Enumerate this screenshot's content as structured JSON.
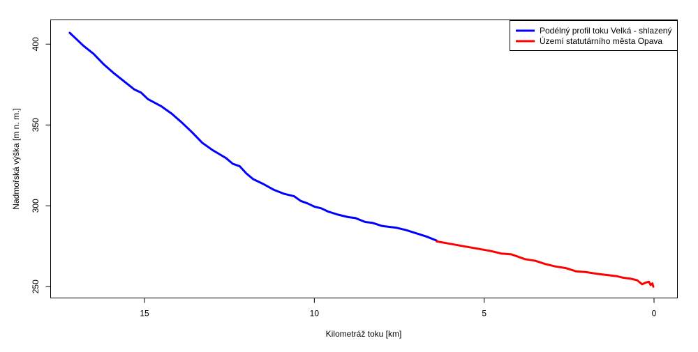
{
  "chart_data": {
    "type": "line",
    "title": "",
    "xlabel": "Kilometráž toku [km]",
    "ylabel": "Nadmořská výška [m n. m.]",
    "xlim": [
      0,
      18
    ],
    "x_reversed": true,
    "ylim": [
      243,
      415
    ],
    "x_ticks": [
      15,
      10,
      5,
      0
    ],
    "y_ticks": [
      250,
      300,
      350,
      400
    ],
    "legend": {
      "position": "top-right",
      "entries": [
        {
          "label": "Podélný profil toku Velká - shlazený",
          "color": "#0000ff"
        },
        {
          "label": "Území statutárního města Opava",
          "color": "#ff0000"
        }
      ]
    },
    "series": [
      {
        "name": "Podélný profil toku Velká - shlazený",
        "color": "#0000ff",
        "x": [
          17.2,
          17.0,
          16.8,
          16.5,
          16.2,
          15.9,
          15.6,
          15.3,
          15.1,
          14.9,
          14.5,
          14.2,
          13.9,
          13.6,
          13.3,
          13.0,
          12.8,
          12.6,
          12.4,
          12.2,
          12.0,
          11.8,
          11.5,
          11.2,
          10.9,
          10.6,
          10.4,
          10.2,
          10.0,
          9.8,
          9.6,
          9.3,
          9.0,
          8.8,
          8.5,
          8.3,
          8.0,
          7.6,
          7.3,
          7.0,
          6.7,
          6.4
        ],
        "y": [
          407,
          403,
          399,
          394,
          387.5,
          382,
          377,
          372,
          370,
          366,
          361.5,
          357,
          351.5,
          345.5,
          339,
          334.5,
          332,
          329.5,
          326,
          324.5,
          320,
          316.5,
          313.5,
          310,
          307.5,
          306,
          303,
          301.5,
          299.5,
          298.5,
          296.5,
          294.5,
          293,
          292.5,
          290,
          289.5,
          287.5,
          286.5,
          285,
          283,
          281,
          278.5
        ]
      },
      {
        "name": "Území statutárního města Opava",
        "color": "#ff0000",
        "x": [
          6.4,
          6.0,
          5.6,
          5.2,
          4.8,
          4.5,
          4.2,
          4.0,
          3.8,
          3.5,
          3.2,
          2.9,
          2.6,
          2.3,
          2.0,
          1.7,
          1.5,
          1.3,
          1.1,
          0.9,
          0.7,
          0.5,
          0.35,
          0.25,
          0.15,
          0.1,
          0.05,
          0.02
        ],
        "y": [
          278,
          276.5,
          275,
          273.5,
          272,
          270.5,
          270,
          268.5,
          267,
          266,
          264,
          262.5,
          261.5,
          259.5,
          259,
          258,
          257.5,
          257,
          256.5,
          255.5,
          255,
          254,
          251.5,
          252.5,
          253,
          251,
          252,
          250
        ]
      }
    ]
  }
}
